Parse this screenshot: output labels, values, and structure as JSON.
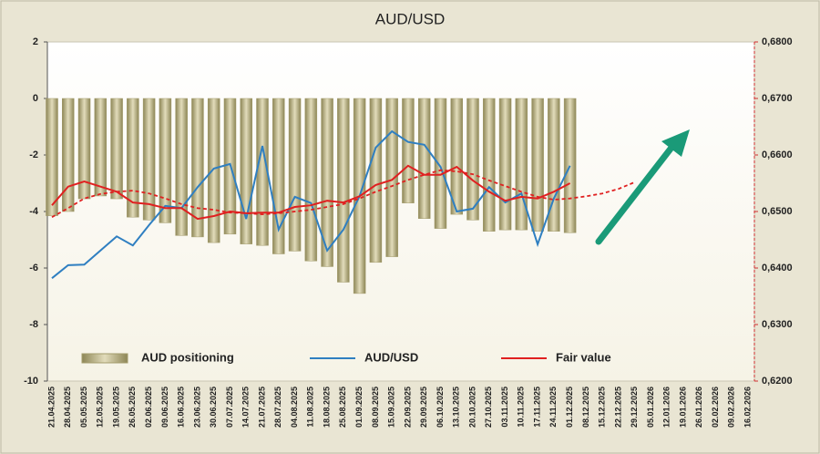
{
  "chart_data": {
    "type": "combo",
    "title": "AUD/USD",
    "categories": [
      "21.04.2025",
      "28.04.2025",
      "05.05.2025",
      "12.05.2025",
      "19.05.2025",
      "26.05.2025",
      "02.06.2025",
      "09.06.2025",
      "16.06.2025",
      "23.06.2025",
      "30.06.2025",
      "07.07.2025",
      "14.07.2025",
      "21.07.2025",
      "28.07.2025",
      "04.08.2025",
      "11.08.2025",
      "18.08.2025",
      "25.08.2025",
      "01.09.2025",
      "08.09.2025",
      "15.09.2025",
      "22.09.2025",
      "29.09.2025",
      "06.10.2025",
      "13.10.2025",
      "20.10.2025",
      "27.10.2025",
      "03.11.2025",
      "10.11.2025",
      "17.11.2025",
      "24.11.2025",
      "01.12.2025",
      "08.12.2025",
      "15.12.2025",
      "22.12.2025",
      "29.12.2025",
      "05.01.2026",
      "12.01.2026",
      "19.01.2026",
      "26.01.2026",
      "02.02.2026",
      "09.02.2026",
      "16.02.2026"
    ],
    "series": [
      {
        "name": "AUD positioning",
        "type": "bar",
        "color": "#bdb586",
        "axis": "y",
        "values": [
          -4.15,
          -4.0,
          -3.55,
          -3.45,
          -3.55,
          -4.2,
          -4.3,
          -4.4,
          -4.85,
          -4.9,
          -5.1,
          -4.8,
          -5.15,
          -5.2,
          -5.5,
          -5.4,
          -5.75,
          -5.95,
          -6.5,
          -6.9,
          -5.8,
          -5.6,
          -3.7,
          -4.25,
          -4.6,
          -4.1,
          -4.3,
          -4.7,
          -4.65,
          -4.65,
          -4.7,
          -4.7,
          -4.75,
          null,
          null,
          null,
          null,
          null,
          null,
          null,
          null,
          null,
          null,
          null
        ]
      },
      {
        "name": "AUD/USD",
        "type": "line",
        "color": "#2f7fc1",
        "axis": "y2",
        "values": [
          0.6382,
          0.6405,
          0.6406,
          0.6431,
          0.6456,
          0.644,
          0.6476,
          0.651,
          0.6506,
          0.6543,
          0.6576,
          0.6584,
          0.6487,
          0.6616,
          0.6468,
          0.6526,
          0.6515,
          0.6431,
          0.6468,
          0.6527,
          0.6613,
          0.6642,
          0.6623,
          0.6618,
          0.6579,
          0.65,
          0.6505,
          0.6543,
          0.6516,
          0.6532,
          0.6442,
          0.6523,
          0.6581,
          null,
          null,
          null,
          null,
          null,
          null,
          null,
          null,
          null,
          null,
          null
        ]
      },
      {
        "name": "Fair value",
        "type": "line",
        "color": "#e02020",
        "axis": "y2",
        "values": [
          0.6511,
          0.6544,
          0.6553,
          0.6544,
          0.6535,
          0.6516,
          0.6513,
          0.6506,
          0.6506,
          0.6487,
          0.6492,
          0.65,
          0.6497,
          0.6498,
          0.6498,
          0.6508,
          0.6511,
          0.6519,
          0.6516,
          0.6527,
          0.6547,
          0.6556,
          0.6581,
          0.6565,
          0.6565,
          0.6579,
          0.6555,
          0.6535,
          0.6519,
          0.6526,
          0.6523,
          0.6535,
          0.655,
          null,
          null,
          null,
          null,
          null,
          null,
          null,
          null,
          null,
          null,
          null
        ]
      },
      {
        "type": "line",
        "dash": true,
        "color": "#e02020",
        "axis": "y2",
        "values": [
          0.649,
          0.6506,
          0.6523,
          0.6531,
          0.6535,
          0.6537,
          0.6532,
          0.6523,
          0.6513,
          0.6506,
          0.6503,
          0.6498,
          0.6497,
          0.6495,
          0.6497,
          0.65,
          0.6503,
          0.6508,
          0.6513,
          0.6523,
          0.6535,
          0.6545,
          0.6556,
          0.6565,
          0.6573,
          0.6571,
          0.6566,
          0.6555,
          0.6545,
          0.6535,
          0.6526,
          0.6521,
          0.6523,
          0.6527,
          0.6532,
          0.654,
          0.6552,
          null,
          null,
          null,
          null,
          null,
          null,
          null
        ]
      }
    ],
    "ylim": [
      -10,
      2
    ],
    "yticks": [
      -10,
      -8,
      -6,
      -4,
      -2,
      0,
      2
    ],
    "y2lim": [
      0.62,
      0.68
    ],
    "y2ticks": [
      {
        "value": 0.62,
        "label": "0,6200"
      },
      {
        "value": 0.63,
        "label": "0,6300"
      },
      {
        "value": 0.64,
        "label": "0,6400"
      },
      {
        "value": 0.65,
        "label": "0,6500"
      },
      {
        "value": 0.66,
        "label": "0,6600"
      },
      {
        "value": 0.67,
        "label": "0,6700"
      },
      {
        "value": 0.68,
        "label": "0,6800"
      }
    ]
  }
}
